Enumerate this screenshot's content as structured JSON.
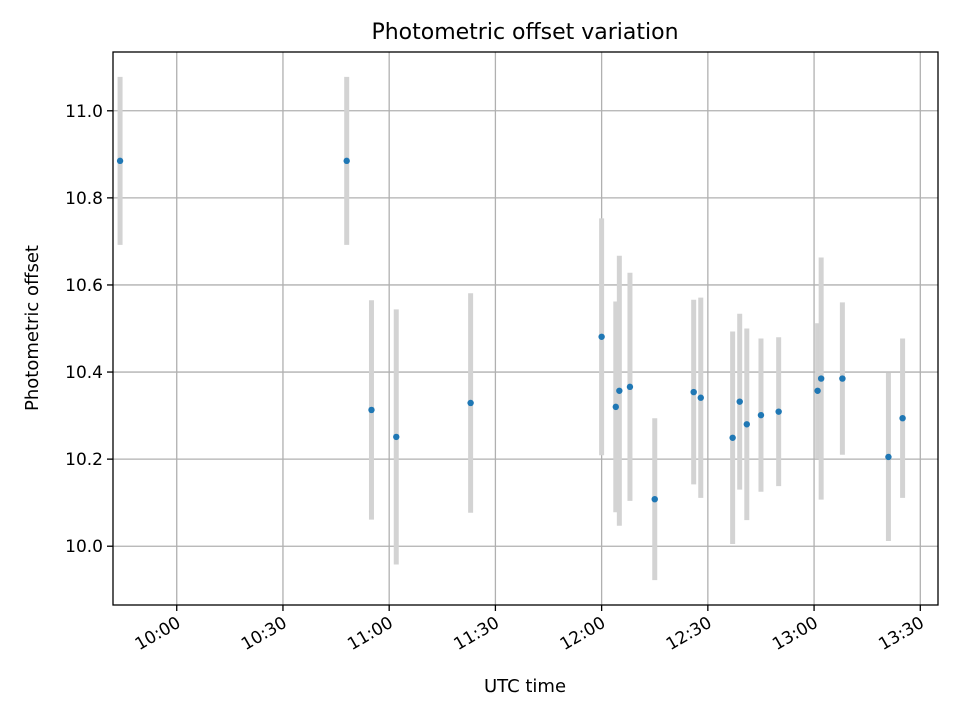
{
  "chart_data": {
    "type": "scatter",
    "title": "Photometric offset variation",
    "xlabel": "UTC time",
    "ylabel": "Photometric offset",
    "xlim": [
      "09:42",
      "13:35"
    ],
    "ylim": [
      9.865,
      11.135
    ],
    "grid": true,
    "x_ticks": [
      "10:00",
      "10:30",
      "11:00",
      "11:30",
      "12:00",
      "12:30",
      "13:00",
      "13:30"
    ],
    "y_ticks": [
      "10.0",
      "10.2",
      "10.4",
      "10.6",
      "10.8",
      "11.0"
    ],
    "colors": {
      "marker": "#1f77b4",
      "errorbar": "#d3d3d3",
      "grid": "#b0b0b0"
    },
    "points": [
      {
        "time": "09:44",
        "y": 10.885,
        "err": 0.193
      },
      {
        "time": "10:48",
        "y": 10.885,
        "err": 0.193
      },
      {
        "time": "10:55",
        "y": 10.313,
        "err": 0.252
      },
      {
        "time": "11:02",
        "y": 10.251,
        "err": 0.293
      },
      {
        "time": "11:23",
        "y": 10.329,
        "err": 0.252
      },
      {
        "time": "12:00",
        "y": 10.481,
        "err": 0.272
      },
      {
        "time": "12:04",
        "y": 10.32,
        "err": 0.242
      },
      {
        "time": "12:05",
        "y": 10.357,
        "err": 0.31
      },
      {
        "time": "12:08",
        "y": 10.366,
        "err": 0.262
      },
      {
        "time": "12:15",
        "y": 10.108,
        "err": 0.186
      },
      {
        "time": "12:26",
        "y": 10.354,
        "err": 0.212
      },
      {
        "time": "12:28",
        "y": 10.341,
        "err": 0.23
      },
      {
        "time": "12:37",
        "y": 10.249,
        "err": 0.244
      },
      {
        "time": "12:39",
        "y": 10.332,
        "err": 0.202
      },
      {
        "time": "12:41",
        "y": 10.28,
        "err": 0.22
      },
      {
        "time": "12:45",
        "y": 10.301,
        "err": 0.176
      },
      {
        "time": "12:50",
        "y": 10.309,
        "err": 0.171
      },
      {
        "time": "13:01",
        "y": 10.357,
        "err": 0.155
      },
      {
        "time": "13:02",
        "y": 10.385,
        "err": 0.278
      },
      {
        "time": "13:08",
        "y": 10.385,
        "err": 0.175
      },
      {
        "time": "13:21",
        "y": 10.205,
        "err": 0.193
      },
      {
        "time": "13:25",
        "y": 10.294,
        "err": 0.183
      }
    ]
  }
}
